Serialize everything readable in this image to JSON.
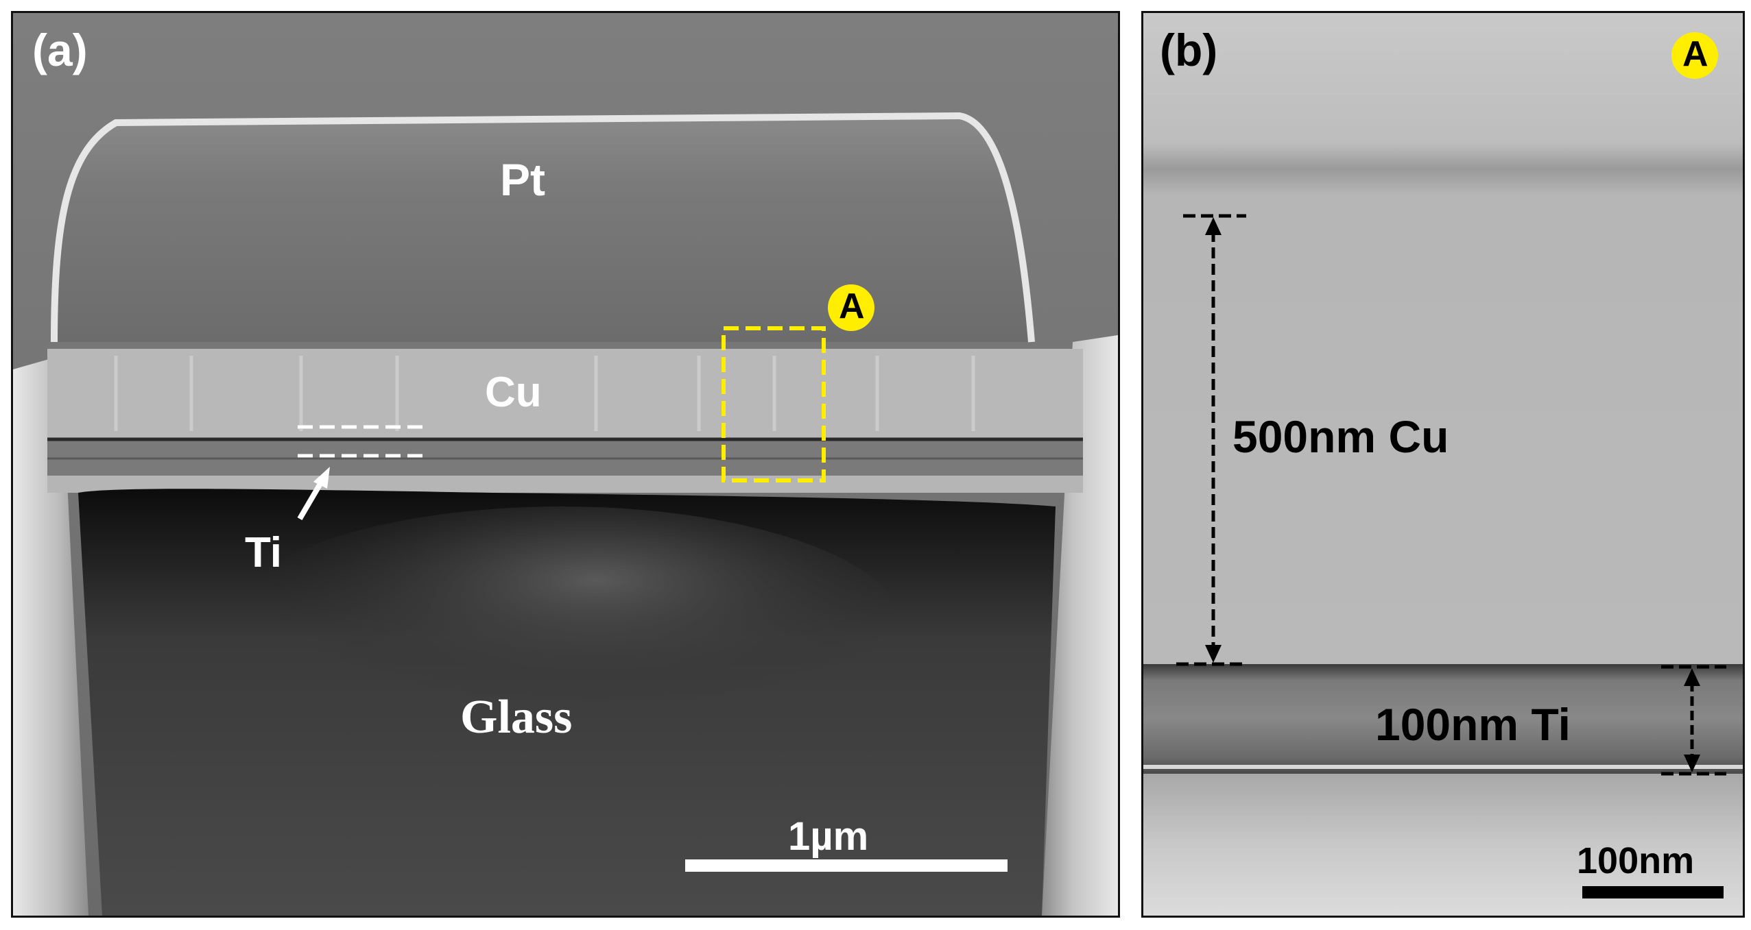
{
  "panel_a": {
    "label": "(a)",
    "layers": {
      "pt": "Pt",
      "cu": "Cu",
      "ti": "Ti",
      "glass": "Glass"
    },
    "marker": "A",
    "scale_bar": "1µm"
  },
  "panel_b": {
    "label": "(b)",
    "marker": "A",
    "cu_thickness": "500nm Cu",
    "ti_thickness": "100nm Ti",
    "scale_bar": "100nm"
  },
  "colors": {
    "marker_yellow": "#ffee00",
    "annotation_white": "#ffffff",
    "annotation_black": "#000000"
  }
}
